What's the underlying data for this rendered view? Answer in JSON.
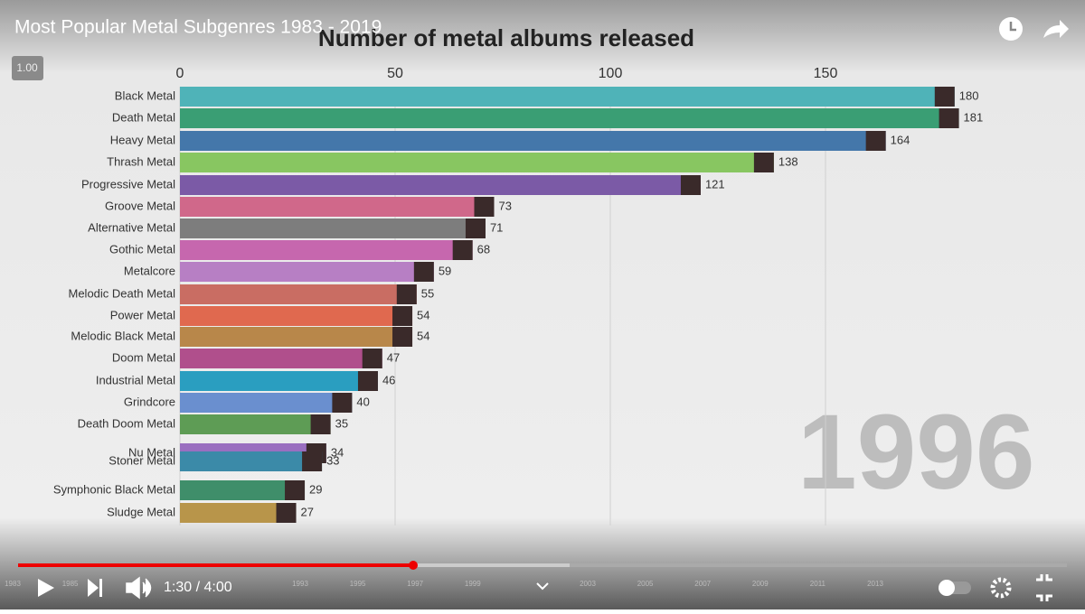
{
  "player": {
    "video_title": "Most Popular Metal Subgenres 1983 - 2019",
    "speed": "1.00",
    "time": "1:30 / 4:00",
    "timeline_years": [
      "1983",
      "1985",
      "1993",
      "1995",
      "1997",
      "1999",
      "2003",
      "2005",
      "2007",
      "2009",
      "2011",
      "2013"
    ]
  },
  "chart_data": {
    "type": "bar",
    "orientation": "horizontal",
    "title": "Number of metal albums released",
    "year_label": "1996",
    "categories": [
      "Black Metal",
      "Death Metal",
      "Heavy Metal",
      "Thrash Metal",
      "Progressive Metal",
      "Groove Metal",
      "Alternative Metal",
      "Gothic Metal",
      "Metalcore",
      "Melodic Death Metal",
      "Power Metal",
      "Melodic Black Metal",
      "Doom Metal",
      "Industrial Metal",
      "Grindcore",
      "Death Doom Metal",
      "Nu Metal",
      "Stoner Metal",
      "Symphonic Black Metal",
      "Sludge Metal"
    ],
    "values": [
      180,
      181,
      164,
      138,
      121,
      73,
      71,
      68,
      59,
      55,
      54,
      54,
      47,
      46,
      40,
      35,
      34,
      33,
      29,
      27
    ],
    "colors": [
      "#4fb3b8",
      "#3a9e74",
      "#4477aa",
      "#88c661",
      "#7b5aa6",
      "#d0688a",
      "#7d7d7d",
      "#c667ae",
      "#b77fc4",
      "#c96d63",
      "#e0694f",
      "#b8874a",
      "#b04f8c",
      "#2a9ec0",
      "#6a8fcf",
      "#5e9c55",
      "#9a6fc0",
      "#3b8aa8",
      "#3f8e6a",
      "#b8954a"
    ],
    "xlim": [
      0,
      190
    ],
    "xticks": [
      0,
      50,
      100,
      150
    ],
    "grid": true
  }
}
